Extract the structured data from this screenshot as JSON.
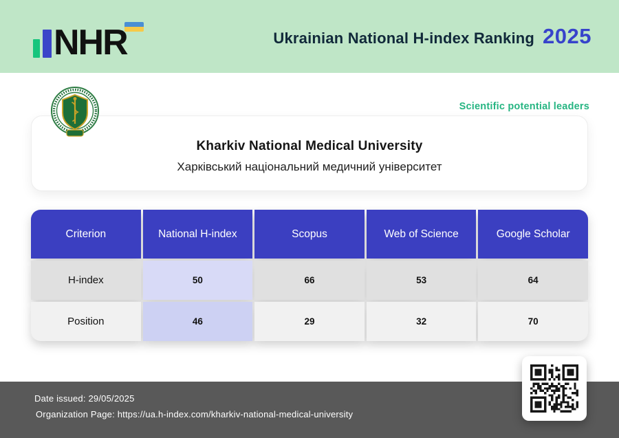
{
  "header": {
    "logo_text": "NHR",
    "title": "Ukrainian National H-index Ranking",
    "year": "2025"
  },
  "badge": "Scientific potential leaders",
  "university": {
    "name_en": "Kharkiv National Medical University",
    "name_uk": "Харківський національний медичний університет"
  },
  "table": {
    "columns": [
      "Criterion",
      "National H-index",
      "Scopus",
      "Web of Science",
      "Google Scholar"
    ],
    "rows": [
      {
        "label": "H-index",
        "values": [
          "50",
          "66",
          "53",
          "64"
        ]
      },
      {
        "label": "Position",
        "values": [
          "46",
          "29",
          "32",
          "70"
        ]
      }
    ],
    "highlighted_column": "National H-index"
  },
  "footer": {
    "date_issued": "Date issued: 29/05/2025",
    "organization_page": "Organization Page: https://ua.h-index.com/kharkiv-national-medical-university"
  },
  "colors": {
    "band_green": "#bfe6c7",
    "accent_blue": "#3b3fc1",
    "year_blue": "#3743cb",
    "highlight_lavender": "#d8daf7",
    "badge_green": "#26b582",
    "footer_gray": "#595959"
  }
}
